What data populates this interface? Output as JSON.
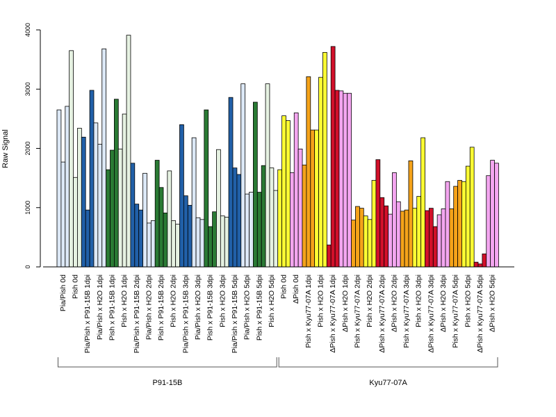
{
  "chart_data": {
    "type": "bar",
    "title": "",
    "xlabel": "",
    "ylabel": "Raw Signal",
    "ylim": [
      0,
      4000
    ],
    "yticks": [
      0,
      1000,
      2000,
      3000,
      4000
    ],
    "grid": false,
    "legend": "none",
    "colors": {
      "light_blue": "#dce8f6",
      "dark_blue": "#2160a8",
      "dark_green": "#2a7a34",
      "light_green": "#e6f2e2",
      "yellow": "#ffff33",
      "pink": "#f4a6f0",
      "orange": "#f5a31a",
      "red": "#d1102a"
    },
    "groups": [
      {
        "label": "P91-15B",
        "categories": [
          {
            "label": "Pia/Pish 0d",
            "values": [
              2650,
              1770,
              2710
            ],
            "colors": [
              "light_blue",
              "light_blue",
              "light_blue"
            ]
          },
          {
            "label": "Pish 0d",
            "values": [
              3650,
              1510,
              2340
            ],
            "colors": [
              "light_green",
              "light_green",
              "light_green"
            ]
          },
          {
            "label": "Pia/Pish x P91-15B 1dpi",
            "values": [
              2190,
              960,
              2980
            ],
            "colors": [
              "dark_blue",
              "dark_blue",
              "dark_blue"
            ]
          },
          {
            "label": "Pia/Pish x H2O 1dpi",
            "values": [
              2430,
              2070,
              3680
            ],
            "colors": [
              "light_blue",
              "light_blue",
              "light_blue"
            ]
          },
          {
            "label": "Pish x P91-15B 1dpi",
            "values": [
              1640,
              1970,
              2830
            ],
            "colors": [
              "dark_green",
              "dark_green",
              "dark_green"
            ]
          },
          {
            "label": "Pish x H2O 1dpi",
            "values": [
              1990,
              2580,
              3910
            ],
            "colors": [
              "light_green",
              "light_green",
              "light_green"
            ]
          },
          {
            "label": "Pia/Pish x P91-15B 2dpi",
            "values": [
              1750,
              1060,
              960
            ],
            "colors": [
              "dark_blue",
              "dark_blue",
              "dark_blue"
            ]
          },
          {
            "label": "Pia/Pish x H2O 2dpi",
            "values": [
              1580,
              740,
              780
            ],
            "colors": [
              "light_blue",
              "light_blue",
              "light_blue"
            ]
          },
          {
            "label": "Pish x P91-15B 2dpi",
            "values": [
              1800,
              1340,
              910
            ],
            "colors": [
              "dark_green",
              "dark_green",
              "dark_green"
            ]
          },
          {
            "label": "Pish x H2O 2dpi",
            "values": [
              1620,
              780,
              720
            ],
            "colors": [
              "light_green",
              "light_green",
              "light_green"
            ]
          },
          {
            "label": "Pia/Pish x P91-15B 3dpi",
            "values": [
              2400,
              1200,
              1040
            ],
            "colors": [
              "dark_blue",
              "dark_blue",
              "dark_blue"
            ]
          },
          {
            "label": "Pia/Pish x H2O 3dpi",
            "values": [
              2180,
              830,
              800
            ],
            "colors": [
              "light_blue",
              "light_blue",
              "light_blue"
            ]
          },
          {
            "label": "Pish x P91-15B 3dpi",
            "values": [
              2650,
              680,
              930
            ],
            "colors": [
              "dark_green",
              "dark_green",
              "dark_green"
            ]
          },
          {
            "label": "Pish x H2O 3dpi",
            "values": [
              1980,
              860,
              840
            ],
            "colors": [
              "light_green",
              "light_green",
              "light_green"
            ]
          },
          {
            "label": "Pia/Pish x P91-15B 5dpi",
            "values": [
              2860,
              1670,
              1560
            ],
            "colors": [
              "dark_blue",
              "dark_blue",
              "dark_blue"
            ]
          },
          {
            "label": "Pia/Pish x H2O 5dpi",
            "values": [
              3090,
              1230,
              1260
            ],
            "colors": [
              "light_blue",
              "light_blue",
              "light_blue"
            ]
          },
          {
            "label": "Pish x P91-15B 5dpi",
            "values": [
              2780,
              1260,
              1710
            ],
            "colors": [
              "dark_green",
              "dark_green",
              "dark_green"
            ]
          },
          {
            "label": "Pish x H2O 5dpi",
            "values": [
              3090,
              1670,
              1290
            ],
            "colors": [
              "light_green",
              "light_green",
              "light_green"
            ]
          }
        ]
      },
      {
        "label": "Kyu77-07A",
        "categories": [
          {
            "label": "Pish 0d",
            "values": [
              1640,
              2550,
              2470
            ],
            "colors": [
              "yellow",
              "yellow",
              "yellow"
            ]
          },
          {
            "label": "ΔPish 0d",
            "values": [
              1590,
              2600,
              1990
            ],
            "colors": [
              "pink",
              "pink",
              "pink"
            ]
          },
          {
            "label": "Pish x Kyu77-07A 1dpi",
            "values": [
              1720,
              3210,
              2310
            ],
            "colors": [
              "orange",
              "orange",
              "orange"
            ]
          },
          {
            "label": "Pish x H2O 1dpi",
            "values": [
              2310,
              3200,
              3620
            ],
            "colors": [
              "yellow",
              "yellow",
              "yellow"
            ]
          },
          {
            "label": "ΔPish x Kyu77-07A 1dpi",
            "values": [
              370,
              3720,
              2980
            ],
            "colors": [
              "red",
              "red",
              "red"
            ]
          },
          {
            "label": "ΔPish x H2O 1dpi",
            "values": [
              2970,
              2930,
              2930
            ],
            "colors": [
              "pink",
              "pink",
              "pink"
            ]
          },
          {
            "label": "Pish x Kyu77-07A 2dpi",
            "values": [
              790,
              1020,
              990
            ],
            "colors": [
              "orange",
              "orange",
              "orange"
            ]
          },
          {
            "label": "Pish x H2O 2dpi",
            "values": [
              860,
              800,
              1460
            ],
            "colors": [
              "yellow",
              "yellow",
              "yellow"
            ]
          },
          {
            "label": "ΔPish x Kyu77-07A 2dpi",
            "values": [
              1810,
              1170,
              1030
            ],
            "colors": [
              "red",
              "red",
              "red"
            ]
          },
          {
            "label": "ΔPish x H2O 2dpi",
            "values": [
              890,
              1590,
              1100
            ],
            "colors": [
              "pink",
              "pink",
              "pink"
            ]
          },
          {
            "label": "Pish x Kyu77-07A 3dpi",
            "values": [
              940,
              960,
              1790
            ],
            "colors": [
              "orange",
              "orange",
              "orange"
            ]
          },
          {
            "label": "Pish x H2O 3dpi",
            "values": [
              990,
              1190,
              2180
            ],
            "colors": [
              "yellow",
              "yellow",
              "yellow"
            ]
          },
          {
            "label": "ΔPish x Kyu77-07A 3dpi",
            "values": [
              950,
              990,
              680
            ],
            "colors": [
              "red",
              "red",
              "red"
            ]
          },
          {
            "label": "ΔPish x H2O 3dpi",
            "values": [
              880,
              980,
              1440
            ],
            "colors": [
              "pink",
              "pink",
              "pink"
            ]
          },
          {
            "label": "Pish x Kyu77-07A 5dpi",
            "values": [
              980,
              1360,
              1460
            ],
            "colors": [
              "orange",
              "orange",
              "orange"
            ]
          },
          {
            "label": "Pish x H2O 5dpi",
            "values": [
              1440,
              1700,
              2020
            ],
            "colors": [
              "yellow",
              "yellow",
              "yellow"
            ]
          },
          {
            "label": "ΔPish x Kyu77-07A 5dpi",
            "values": [
              80,
              50,
              220
            ],
            "colors": [
              "red",
              "red",
              "red"
            ]
          },
          {
            "label": "ΔPish x H2O 5dpi",
            "values": [
              1540,
              1800,
              1750
            ],
            "colors": [
              "pink",
              "pink",
              "pink"
            ]
          }
        ]
      }
    ]
  }
}
